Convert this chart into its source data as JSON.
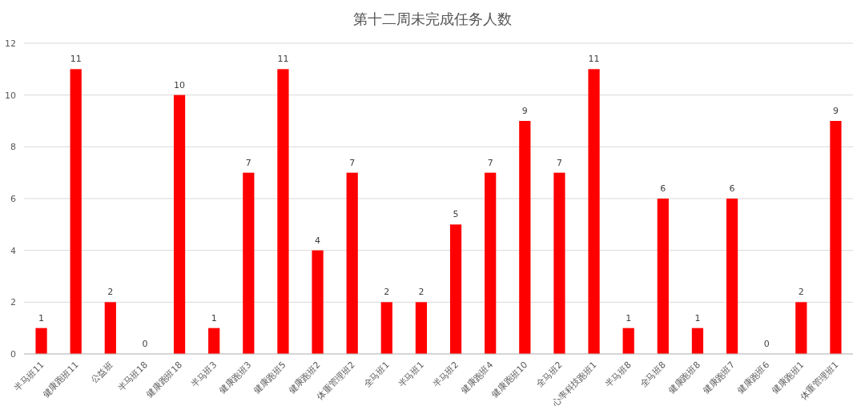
{
  "chart_data": {
    "type": "bar",
    "title": "第十二周未完成任务人数",
    "categories": [
      "半马班11",
      "健康跑班11",
      "公益班",
      "半马班18",
      "健康跑班18",
      "半马班3",
      "健康跑班3",
      "健康跑班5",
      "健康跑班2",
      "体重管理班2",
      "全马班1",
      "半马班1",
      "半马班2",
      "健康跑班4",
      "健康跑班10",
      "全马班2",
      "心率科技跑班1",
      "半马班8",
      "全马班8",
      "健康跑班8",
      "健康跑班7",
      "健康跑班6",
      "健康跑班1",
      "体重管理班1"
    ],
    "values": [
      1,
      11,
      2,
      0,
      10,
      1,
      7,
      11,
      4,
      7,
      2,
      2,
      5,
      7,
      9,
      7,
      11,
      1,
      6,
      1,
      6,
      0,
      2,
      9
    ],
    "color": "#ff0000",
    "ylim": [
      0,
      12
    ],
    "yticks": [
      0,
      2,
      4,
      6,
      8,
      10,
      12
    ],
    "grid": "y",
    "data_labels": true
  }
}
